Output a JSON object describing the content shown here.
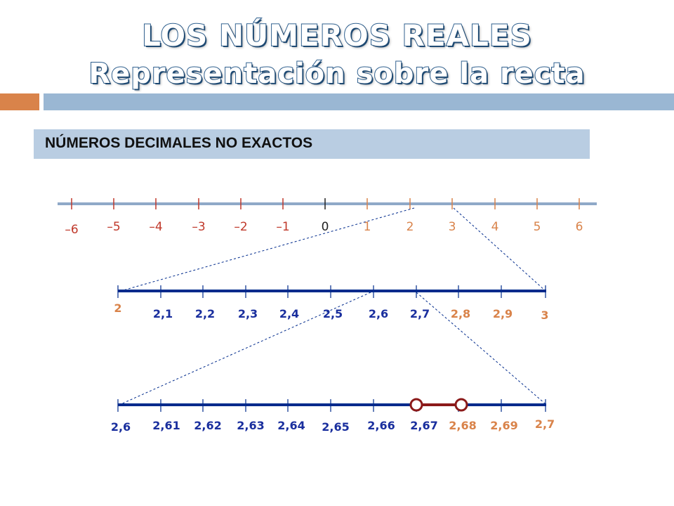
{
  "title": {
    "line1": "LOS NÚMEROS REALES",
    "line2": "Representación sobre la recta"
  },
  "section_label": "NÚMEROS DECIMALES NO EXACTOS",
  "colors": {
    "negative": "#c0392b",
    "integers": "#d9834a",
    "zero": "#222222",
    "line_blue": "#002a8c",
    "gray_line": "#8fa9c8",
    "decimal_blue": "#1a2f9e",
    "interval": "#8b1a1a"
  },
  "number_line_1": {
    "labels": [
      "–6",
      "–5",
      "–4",
      "–3",
      "–2",
      "–1",
      "0",
      "1",
      "2",
      "3",
      "4",
      "5",
      "6"
    ]
  },
  "number_line_2": {
    "labels": [
      "2",
      "2,1",
      "2,2",
      "2,3",
      "2,4",
      "2,5",
      "2,6",
      "2,7",
      "2,8",
      "2,9",
      "3"
    ]
  },
  "number_line_3": {
    "labels": [
      "2,6",
      "2,61",
      "2,62",
      "2,63",
      "2,64",
      "2,65",
      "2,66",
      "2,67",
      "2,68",
      "2,69",
      "2,7"
    ],
    "interval": {
      "from": "2,67",
      "to": "2,68"
    }
  }
}
